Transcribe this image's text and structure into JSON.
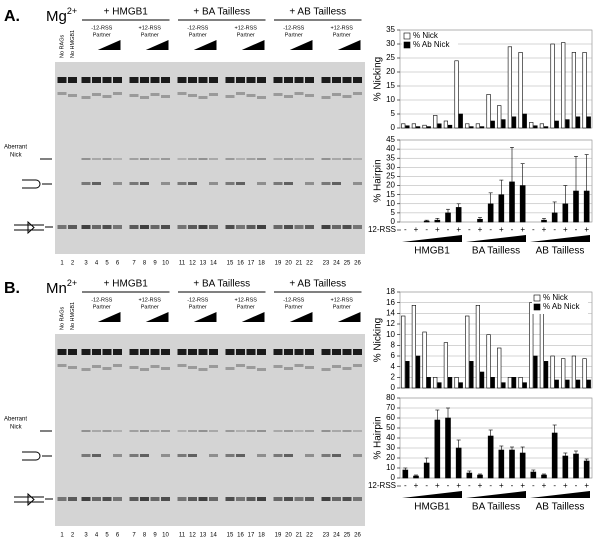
{
  "panels": [
    {
      "label": "A.",
      "ion": "Mg",
      "charge": "2+",
      "groups": [
        "+ HMGB1",
        "+ BA Tailless",
        "+ AB Tailless"
      ],
      "partners": [
        "-12-RSS",
        "+12-RSS"
      ],
      "partner_word": "Partner",
      "controls": [
        "No RAGs",
        "No HMGB1"
      ],
      "band_label": [
        "Aberrant",
        "Nick"
      ],
      "lanes": [
        1,
        2,
        3,
        4,
        5,
        6,
        7,
        8,
        9,
        10,
        11,
        12,
        13,
        14,
        15,
        16,
        17,
        18,
        19,
        20,
        21,
        22,
        23,
        24,
        25,
        26
      ]
    },
    {
      "label": "B.",
      "ion": "Mn",
      "charge": "2+",
      "groups": [
        "+ HMGB1",
        "+ BA Tailless",
        "+ AB Tailless"
      ],
      "partners": [
        "-12-RSS",
        "+12-RSS"
      ],
      "partner_word": "Partner",
      "controls": [
        "No RAGs",
        "No HMGB1"
      ],
      "band_label": [
        "Aberrant",
        "Nick"
      ],
      "lanes": [
        1,
        2,
        3,
        4,
        5,
        6,
        7,
        8,
        9,
        10,
        11,
        12,
        13,
        14,
        15,
        16,
        17,
        18,
        19,
        20,
        21,
        22,
        23,
        24,
        25,
        26
      ]
    }
  ],
  "chart_data": [
    {
      "type": "bar",
      "y_label": "% Nicking",
      "legend": "top-left",
      "grid": true,
      "categories": [
        null,
        null,
        null,
        null,
        null,
        null,
        null,
        null,
        null,
        null,
        null,
        null,
        null,
        null,
        null,
        null,
        null,
        null
      ],
      "ylim": [
        0,
        35
      ],
      "yticks": [
        0,
        5,
        10,
        15,
        20,
        25,
        30,
        35
      ],
      "series": [
        {
          "name": "% Nick",
          "color": "#ffffff",
          "values": [
            1.5,
            1.5,
            1,
            4.5,
            2.5,
            24,
            1.5,
            1.5,
            12,
            8,
            29,
            27,
            2,
            1.5,
            30,
            30.5,
            27,
            27
          ]
        },
        {
          "name": "% Ab Nick",
          "color": "#000000",
          "values": [
            0.8,
            0.5,
            0.5,
            1.5,
            1,
            5,
            0.5,
            0.5,
            2.5,
            3,
            4,
            5,
            0.8,
            0.5,
            2.5,
            3,
            4,
            4
          ]
        }
      ]
    },
    {
      "type": "bar",
      "y_label": "% Hairpin",
      "grid": true,
      "x_label": "12-RSS",
      "groups": [
        "HMGB1",
        "BA Tailless",
        "AB Tailless"
      ],
      "categories": [
        "-",
        "+",
        "-",
        "+",
        "-",
        "+",
        "-",
        "+",
        "-",
        "+",
        "-",
        "+",
        "-",
        "+",
        "-",
        "+",
        "-",
        "+"
      ],
      "ylim": [
        0,
        45
      ],
      "yticks": [
        0,
        5,
        10,
        15,
        20,
        25,
        30,
        35,
        40,
        45
      ],
      "series": [
        {
          "color": "#000000",
          "values": [
            0,
            0,
            0.5,
            1,
            5,
            8,
            0,
            1.5,
            10,
            15,
            22,
            20,
            0,
            1,
            5,
            10,
            17,
            17
          ],
          "errors": [
            0,
            0,
            0.5,
            1,
            2,
            2,
            0,
            1,
            6,
            8,
            19,
            12,
            0,
            1,
            6,
            10,
            19,
            20
          ]
        }
      ]
    },
    {
      "type": "bar",
      "y_label": "% Nicking",
      "legend": "top-right",
      "grid": true,
      "categories": [
        null,
        null,
        null,
        null,
        null,
        null,
        null,
        null,
        null,
        null,
        null,
        null,
        null,
        null,
        null,
        null,
        null,
        null
      ],
      "ylim": [
        0,
        18
      ],
      "yticks": [
        0,
        2,
        4,
        6,
        8,
        10,
        12,
        14,
        16,
        18
      ],
      "series": [
        {
          "name": "% Nick",
          "color": "#ffffff",
          "values": [
            13.5,
            15.5,
            10.5,
            2,
            8.5,
            2,
            13.5,
            15.5,
            10,
            7.5,
            2,
            2,
            16,
            14,
            6,
            5.5,
            6,
            5.5
          ]
        },
        {
          "name": "% Ab Nick",
          "color": "#000000",
          "values": [
            5,
            6,
            2,
            1,
            2,
            1,
            5,
            3,
            2,
            1,
            2,
            1,
            6,
            5,
            1.5,
            1.5,
            1.5,
            1.5
          ]
        }
      ]
    },
    {
      "type": "bar",
      "y_label": "% Hairpin",
      "grid": true,
      "x_label": "12-RSS",
      "groups": [
        "HMGB1",
        "BA Tailless",
        "AB Tailless"
      ],
      "categories": [
        "-",
        "+",
        "-",
        "+",
        "-",
        "+",
        "-",
        "+",
        "-",
        "+",
        "-",
        "+",
        "-",
        "+",
        "-",
        "+",
        "-",
        "+"
      ],
      "ylim": [
        0,
        80
      ],
      "yticks": [
        0,
        10,
        20,
        30,
        40,
        50,
        60,
        70,
        80
      ],
      "series": [
        {
          "color": "#000000",
          "values": [
            8,
            2,
            15,
            58,
            60,
            30,
            5,
            3,
            42,
            28,
            28,
            25,
            6,
            3,
            45,
            22,
            24,
            17
          ],
          "errors": [
            2,
            1,
            5,
            10,
            10,
            8,
            2,
            1,
            6,
            4,
            3,
            6,
            2,
            1,
            8,
            3,
            3,
            2
          ]
        }
      ]
    }
  ]
}
